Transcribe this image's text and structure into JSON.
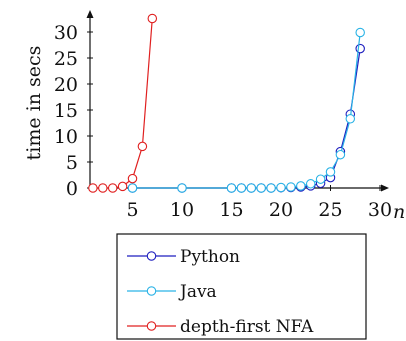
{
  "chart_data": {
    "type": "line",
    "xlabel": "n",
    "ylabel": "time in secs",
    "xlim": [
      0,
      31
    ],
    "ylim": [
      0,
      34
    ],
    "xticks": [
      5,
      10,
      15,
      20,
      25,
      30
    ],
    "yticks": [
      0,
      5,
      10,
      15,
      20,
      25,
      30
    ],
    "legend_position": "below",
    "series": [
      {
        "name": "Python",
        "color": "#1f1fbf",
        "x": [
          5,
          10,
          15,
          16,
          17,
          18,
          19,
          20,
          21,
          22,
          23,
          24,
          25,
          26,
          27,
          28
        ],
        "y": [
          0,
          0,
          0,
          0,
          0,
          0,
          0,
          0.05,
          0.1,
          0.2,
          0.4,
          0.9,
          2.0,
          7.0,
          14.2,
          26.8
        ]
      },
      {
        "name": "Java",
        "color": "#2ab3e6",
        "x": [
          5,
          10,
          15,
          16,
          17,
          18,
          19,
          20,
          21,
          22,
          23,
          24,
          25,
          26,
          27,
          28
        ],
        "y": [
          0,
          0,
          0,
          0,
          0,
          0,
          0,
          0.1,
          0.2,
          0.4,
          0.8,
          1.7,
          3.1,
          6.4,
          13.3,
          29.9
        ]
      },
      {
        "name": "depth-first NFA",
        "color": "#e02020",
        "x": [
          1,
          2,
          3,
          4,
          5,
          6,
          7
        ],
        "y": [
          0,
          0,
          0,
          0.3,
          1.8,
          8.0,
          32.6
        ]
      }
    ]
  }
}
